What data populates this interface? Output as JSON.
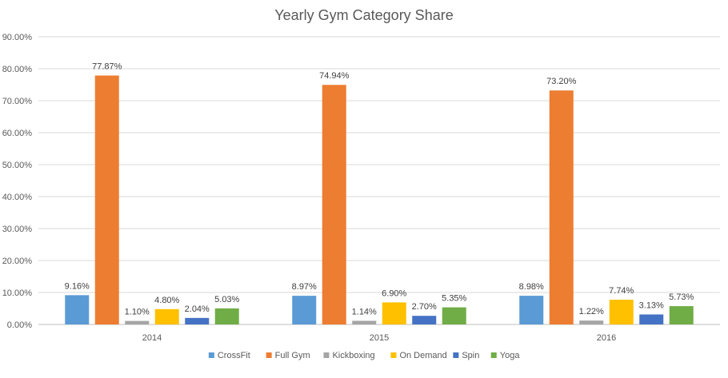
{
  "chart_data": {
    "type": "bar",
    "title": "Yearly Gym Category Share",
    "categories": [
      "2014",
      "2015",
      "2016"
    ],
    "series": [
      {
        "name": "CrossFit",
        "color": "#5B9BD5",
        "values": [
          9.16,
          8.97,
          8.98
        ],
        "labels": [
          "9.16%",
          "8.97%",
          "8.98%"
        ]
      },
      {
        "name": "Full Gym",
        "color": "#ED7D31",
        "values": [
          77.87,
          74.94,
          73.2
        ],
        "labels": [
          "77.87%",
          "74.94%",
          "73.20%"
        ]
      },
      {
        "name": "Kickboxing",
        "color": "#A5A5A5",
        "values": [
          1.1,
          1.14,
          1.22
        ],
        "labels": [
          "1.10%",
          "1.14%",
          "1.22%"
        ]
      },
      {
        "name": "On Demand",
        "color": "#FFC000",
        "values": [
          4.8,
          6.9,
          7.74
        ],
        "labels": [
          "4.80%",
          "6.90%",
          "7.74%"
        ]
      },
      {
        "name": "Spin",
        "color": "#4472C4",
        "values": [
          2.04,
          2.7,
          3.13
        ],
        "labels": [
          "2.04%",
          "2.70%",
          "3.13%"
        ]
      },
      {
        "name": "Yoga",
        "color": "#70AD47",
        "values": [
          5.03,
          5.35,
          5.73
        ],
        "labels": [
          "5.03%",
          "5.35%",
          "5.73%"
        ]
      }
    ],
    "ylim": [
      0,
      90
    ],
    "yticks": [
      "0.00%",
      "10.00%",
      "20.00%",
      "30.00%",
      "40.00%",
      "50.00%",
      "60.00%",
      "70.00%",
      "80.00%",
      "90.00%"
    ],
    "grid": true,
    "legend_position": "bottom"
  }
}
